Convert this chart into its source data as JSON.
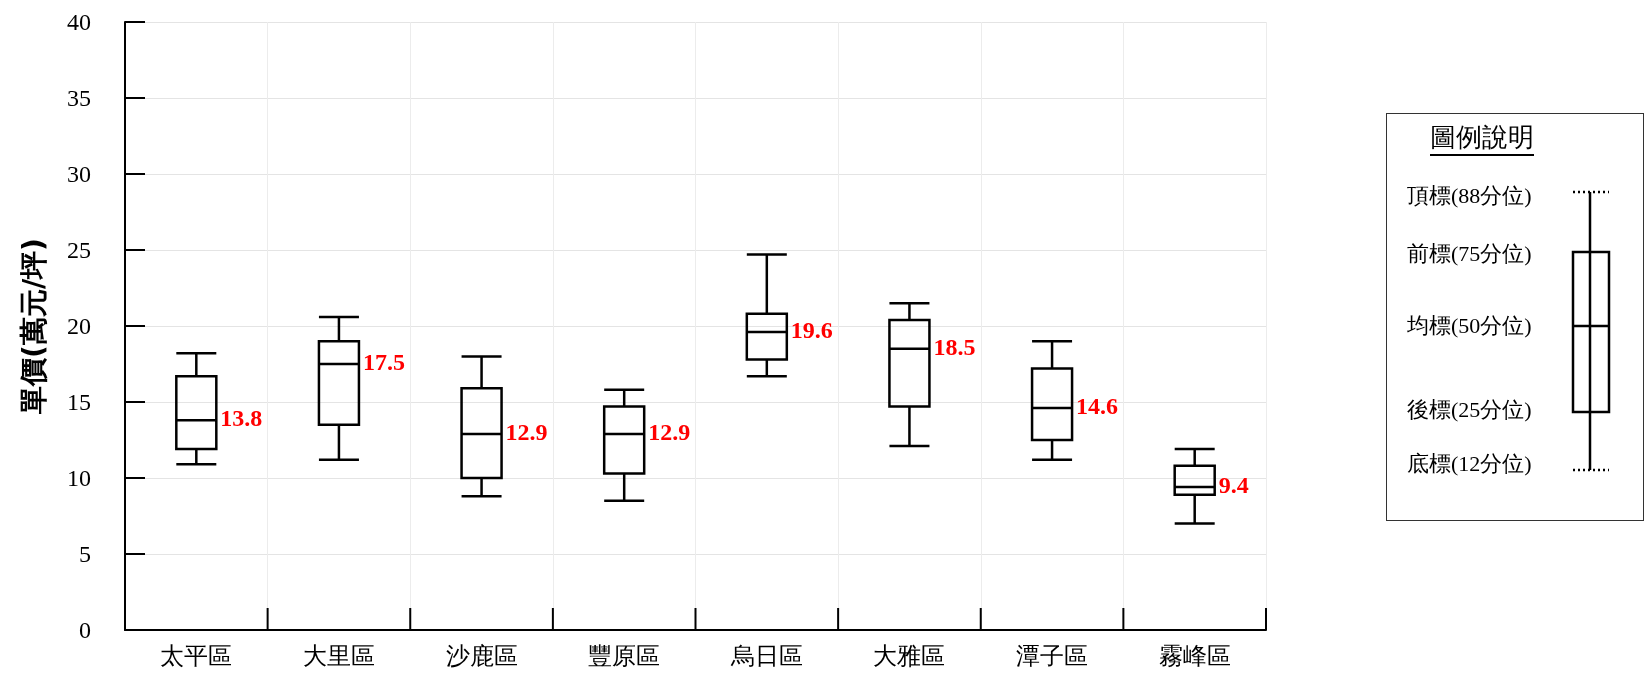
{
  "chart_data": {
    "type": "box",
    "ylabel": "單價(萬元/坪)",
    "categories": [
      "太平區",
      "大里區",
      "沙鹿區",
      "豐原區",
      "烏日區",
      "大雅區",
      "潭子區",
      "霧峰區"
    ],
    "boxes": [
      {
        "low": 10.9,
        "q1": 11.9,
        "median": 13.8,
        "q3": 16.7,
        "high": 18.2
      },
      {
        "low": 11.2,
        "q1": 13.5,
        "median": 17.5,
        "q3": 19.0,
        "high": 20.6
      },
      {
        "low": 8.8,
        "q1": 10.0,
        "median": 12.9,
        "q3": 15.9,
        "high": 18.0
      },
      {
        "low": 8.5,
        "q1": 10.3,
        "median": 12.9,
        "q3": 14.7,
        "high": 15.8
      },
      {
        "low": 16.7,
        "q1": 17.8,
        "median": 19.6,
        "q3": 20.8,
        "high": 24.7
      },
      {
        "low": 12.1,
        "q1": 14.7,
        "median": 18.5,
        "q3": 20.4,
        "high": 21.5
      },
      {
        "low": 11.2,
        "q1": 12.5,
        "median": 14.6,
        "q3": 17.2,
        "high": 19.0
      },
      {
        "low": 7.0,
        "q1": 8.9,
        "median": 9.4,
        "q3": 10.8,
        "high": 11.9
      }
    ],
    "color": "#000000",
    "ylim": [
      0,
      40
    ],
    "yticks": [
      0,
      5,
      10,
      15,
      20,
      25,
      30,
      35,
      40
    ],
    "grid": true,
    "annotations": [
      {
        "text": "13.8",
        "x": "太平區",
        "y": 13.8
      },
      {
        "text": "17.5",
        "x": "大里區",
        "y": 17.5
      },
      {
        "text": "12.9",
        "x": "沙鹿區",
        "y": 12.9
      },
      {
        "text": "12.9",
        "x": "豐原區",
        "y": 12.9
      },
      {
        "text": "19.6",
        "x": "烏日區",
        "y": 19.6
      },
      {
        "text": "18.5",
        "x": "大雅區",
        "y": 18.5
      },
      {
        "text": "14.6",
        "x": "潭子區",
        "y": 14.6
      },
      {
        "text": "9.4",
        "x": "霧峰區",
        "y": 9.4
      },
      "圖例說明",
      "頂標(88分位)",
      "前標(75分位)",
      "均標(50分位)",
      "後標(25分位)",
      "底標(12分位)"
    ]
  }
}
